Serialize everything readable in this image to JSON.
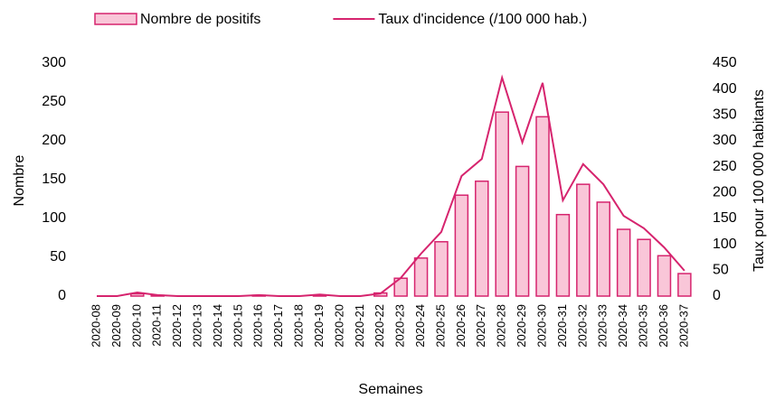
{
  "chart_data": {
    "type": "bar_line",
    "categories": [
      "2020-08",
      "2020-09",
      "2020-10",
      "2020-11",
      "2020-12",
      "2020-13",
      "2020-14",
      "2020-15",
      "2020-16",
      "2020-17",
      "2020-18",
      "2020-19",
      "2020-20",
      "2020-21",
      "2020-22",
      "2020-23",
      "2020-24",
      "2020-25",
      "2020-26",
      "2020-27",
      "2020-28",
      "2020-29",
      "2020-30",
      "2020-31",
      "2020-32",
      "2020-33",
      "2020-34",
      "2020-35",
      "2020-36",
      "2020-37"
    ],
    "series": [
      {
        "name": "Nombre de positifs",
        "type": "bar",
        "color": "#f9c6d8",
        "edge_color": "#d6246e",
        "values": [
          0,
          0,
          3,
          1,
          0,
          0,
          0,
          0,
          1,
          0,
          0,
          1,
          0,
          0,
          4,
          23,
          49,
          70,
          130,
          148,
          237,
          167,
          231,
          105,
          144,
          121,
          86,
          73,
          52,
          29
        ]
      },
      {
        "name": "Taux d'incidence (/100 000 hab.)",
        "type": "line",
        "axis": "y2",
        "color": "#d6246e",
        "values": [
          0,
          0,
          7,
          2,
          0,
          0,
          0,
          0,
          2,
          0,
          0,
          3,
          0,
          0,
          5,
          35,
          82,
          124,
          232,
          265,
          422,
          297,
          412,
          185,
          255,
          216,
          155,
          131,
          94,
          49
        ]
      }
    ],
    "ylabel": "Nombre",
    "y2label": "Taux pour 100 000 habitants",
    "xlabel": "Semaines",
    "ylim": [
      0,
      300
    ],
    "yticks": [
      0,
      50,
      100,
      150,
      200,
      250,
      300
    ],
    "y2lim": [
      0,
      450
    ],
    "y2ticks": [
      0,
      50,
      100,
      150,
      200,
      250,
      300,
      350,
      400,
      450
    ],
    "legend": "top"
  }
}
